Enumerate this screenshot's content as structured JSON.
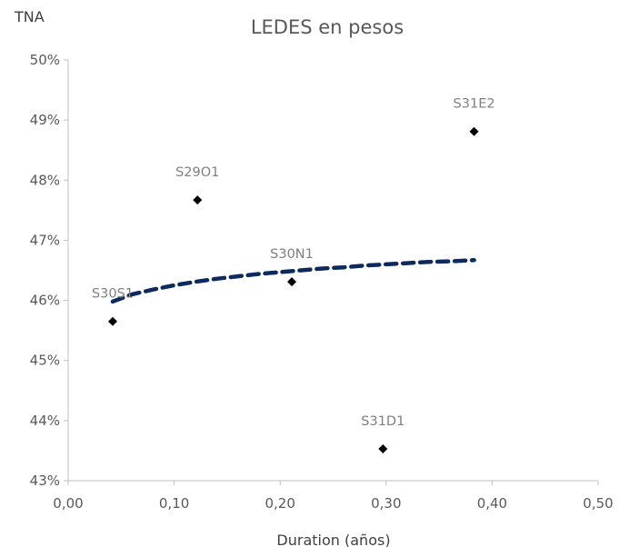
{
  "chart_data": {
    "type": "scatter",
    "title": "LEDES en pesos",
    "ylabel": "TNA",
    "xlabel": "Duration (años)",
    "xlim": [
      0,
      0.5
    ],
    "ylim": [
      0.43,
      0.5
    ],
    "x_ticks": [
      {
        "value": 0.0,
        "label": "0,00"
      },
      {
        "value": 0.1,
        "label": "0,10"
      },
      {
        "value": 0.2,
        "label": "0,20"
      },
      {
        "value": 0.3,
        "label": "0,30"
      },
      {
        "value": 0.4,
        "label": "0,40"
      },
      {
        "value": 0.5,
        "label": "0,50"
      }
    ],
    "y_ticks": [
      {
        "value": 0.43,
        "label": "43%"
      },
      {
        "value": 0.44,
        "label": "44%"
      },
      {
        "value": 0.45,
        "label": "45%"
      },
      {
        "value": 0.46,
        "label": "46%"
      },
      {
        "value": 0.47,
        "label": "47%"
      },
      {
        "value": 0.48,
        "label": "48%"
      },
      {
        "value": 0.49,
        "label": "49%"
      },
      {
        "value": 0.5,
        "label": "50%"
      }
    ],
    "grid": false,
    "points": [
      {
        "label": "S30S1",
        "x": 0.042,
        "y": 0.4565
      },
      {
        "label": "S29O1",
        "x": 0.122,
        "y": 0.4767
      },
      {
        "label": "S30N1",
        "x": 0.211,
        "y": 0.4631
      },
      {
        "label": "S31D1",
        "x": 0.297,
        "y": 0.4353
      },
      {
        "label": "S31E2",
        "x": 0.383,
        "y": 0.4881
      }
    ],
    "trendline": {
      "style": "dashed",
      "x": [
        0.042,
        0.06,
        0.08,
        0.1,
        0.12,
        0.14,
        0.16,
        0.18,
        0.2,
        0.22,
        0.24,
        0.26,
        0.28,
        0.3,
        0.32,
        0.34,
        0.36,
        0.383
      ],
      "y": [
        0.4598,
        0.461,
        0.4618,
        0.4625,
        0.4631,
        0.4636,
        0.464,
        0.4644,
        0.4647,
        0.465,
        0.4653,
        0.4655,
        0.4658,
        0.466,
        0.4662,
        0.4664,
        0.4665,
        0.4667
      ]
    },
    "colors": {
      "markers": "#000000",
      "trendline": "#0d2a5e",
      "axis": "#bfbfbf",
      "labels": "#7f7f7f"
    }
  }
}
